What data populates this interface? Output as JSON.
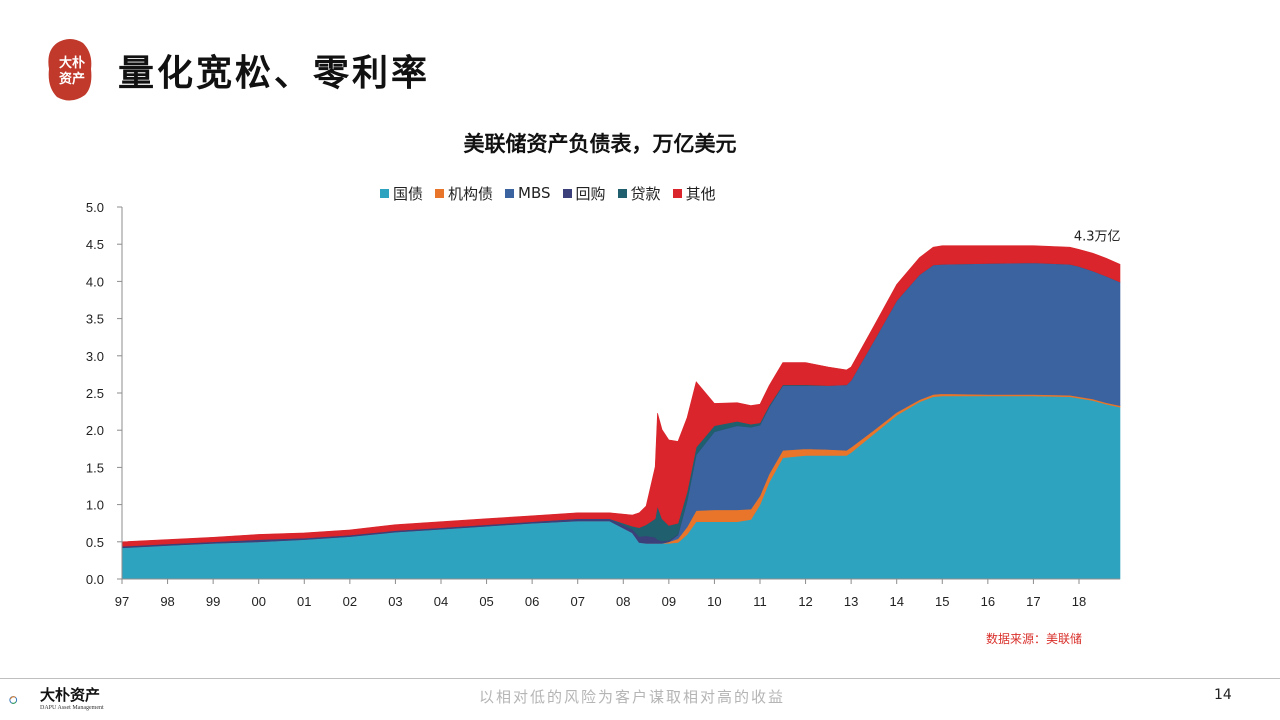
{
  "slide": {
    "title": "量化宽松、零利率",
    "logo_text": [
      "大",
      "朴",
      "资",
      "产"
    ],
    "source": "数据来源：美联储",
    "footer_brand": "大朴资产",
    "footer_brand_en": "DAPU Asset Management",
    "footer_slogan": "以相对低的风险为客户谋取相对高的收益",
    "page_number": "14",
    "brand_color": "#c0392b"
  },
  "chart_data": {
    "type": "area",
    "stacked": true,
    "title": "美联储资产负债表，万亿美元",
    "xlabel": "",
    "ylabel": "",
    "ylim": [
      0,
      5
    ],
    "yticks": [
      "0.0",
      "0.5",
      "1.0",
      "1.5",
      "2.0",
      "2.5",
      "3.0",
      "3.5",
      "4.0",
      "4.5",
      "5.0"
    ],
    "xlim": [
      1997,
      2018.9
    ],
    "xticks": [
      {
        "year": 1997,
        "label": "97"
      },
      {
        "year": 1998,
        "label": "98"
      },
      {
        "year": 1999,
        "label": "99"
      },
      {
        "year": 2000,
        "label": "00"
      },
      {
        "year": 2001,
        "label": "01"
      },
      {
        "year": 2002,
        "label": "02"
      },
      {
        "year": 2003,
        "label": "03"
      },
      {
        "year": 2004,
        "label": "04"
      },
      {
        "year": 2005,
        "label": "05"
      },
      {
        "year": 2006,
        "label": "06"
      },
      {
        "year": 2007,
        "label": "07"
      },
      {
        "year": 2008,
        "label": "08"
      },
      {
        "year": 2009,
        "label": "09"
      },
      {
        "year": 2010,
        "label": "10"
      },
      {
        "year": 2011,
        "label": "11"
      },
      {
        "year": 2012,
        "label": "12"
      },
      {
        "year": 2013,
        "label": "13"
      },
      {
        "year": 2014,
        "label": "14"
      },
      {
        "year": 2015,
        "label": "15"
      },
      {
        "year": 2016,
        "label": "16"
      },
      {
        "year": 2017,
        "label": "17"
      },
      {
        "year": 2018,
        "label": "18"
      }
    ],
    "legend_position": "top",
    "grid": false,
    "x": [
      1997.0,
      1998.0,
      1999.0,
      2000.0,
      2001.0,
      2002.0,
      2003.0,
      2004.0,
      2005.0,
      2006.0,
      2007.0,
      2007.7,
      2008.2,
      2008.35,
      2008.5,
      2008.7,
      2008.75,
      2008.85,
      2009.0,
      2009.2,
      2009.4,
      2009.6,
      2010.0,
      2010.5,
      2010.8,
      2011.0,
      2011.2,
      2011.5,
      2012.0,
      2012.5,
      2012.9,
      2013.0,
      2013.5,
      2014.0,
      2014.5,
      2014.8,
      2015.0,
      2016.0,
      2017.0,
      2017.8,
      2018.0,
      2018.3,
      2018.6,
      2018.9
    ],
    "series": [
      {
        "name": "国债",
        "color": "#2ea3bf",
        "values": [
          0.42,
          0.45,
          0.48,
          0.5,
          0.53,
          0.57,
          0.63,
          0.67,
          0.71,
          0.75,
          0.78,
          0.78,
          0.62,
          0.49,
          0.48,
          0.48,
          0.48,
          0.48,
          0.48,
          0.49,
          0.6,
          0.77,
          0.77,
          0.77,
          0.8,
          1.0,
          1.3,
          1.63,
          1.66,
          1.66,
          1.66,
          1.7,
          1.95,
          2.2,
          2.38,
          2.45,
          2.46,
          2.46,
          2.46,
          2.45,
          2.43,
          2.4,
          2.35,
          2.31
        ]
      },
      {
        "name": "机构债",
        "color": "#e8752a",
        "values": [
          0.0,
          0.0,
          0.0,
          0.0,
          0.0,
          0.0,
          0.0,
          0.0,
          0.0,
          0.0,
          0.0,
          0.0,
          0.0,
          0.0,
          0.0,
          0.0,
          0.0,
          0.0,
          0.02,
          0.05,
          0.1,
          0.15,
          0.16,
          0.16,
          0.14,
          0.12,
          0.11,
          0.1,
          0.09,
          0.08,
          0.07,
          0.07,
          0.05,
          0.04,
          0.03,
          0.03,
          0.03,
          0.02,
          0.02,
          0.02,
          0.02,
          0.02,
          0.02,
          0.02
        ]
      },
      {
        "name": "MBS",
        "color": "#3a63a0",
        "values": [
          0.0,
          0.0,
          0.0,
          0.0,
          0.0,
          0.0,
          0.0,
          0.0,
          0.0,
          0.0,
          0.0,
          0.0,
          0.0,
          0.0,
          0.0,
          0.0,
          0.0,
          0.0,
          0.0,
          0.05,
          0.35,
          0.75,
          1.05,
          1.13,
          1.1,
          0.95,
          0.9,
          0.87,
          0.85,
          0.86,
          0.88,
          0.9,
          1.2,
          1.5,
          1.68,
          1.74,
          1.74,
          1.76,
          1.77,
          1.76,
          1.75,
          1.72,
          1.7,
          1.66
        ]
      },
      {
        "name": "回购",
        "color": "#3b3f7a",
        "values": [
          0.02,
          0.02,
          0.02,
          0.03,
          0.02,
          0.02,
          0.02,
          0.02,
          0.02,
          0.02,
          0.03,
          0.03,
          0.05,
          0.08,
          0.1,
          0.08,
          0.05,
          0.03,
          0.02,
          0.01,
          0.0,
          0.0,
          0.0,
          0.0,
          0.0,
          0.0,
          0.0,
          0.0,
          0.0,
          0.0,
          0.0,
          0.0,
          0.0,
          0.0,
          0.0,
          0.0,
          0.0,
          0.0,
          0.0,
          0.0,
          0.0,
          0.0,
          0.0,
          0.0
        ]
      },
      {
        "name": "贷款",
        "color": "#1f5f6e",
        "values": [
          0.0,
          0.0,
          0.0,
          0.0,
          0.0,
          0.0,
          0.0,
          0.0,
          0.0,
          0.0,
          0.0,
          0.0,
          0.04,
          0.12,
          0.15,
          0.25,
          0.45,
          0.3,
          0.2,
          0.15,
          0.12,
          0.1,
          0.08,
          0.06,
          0.04,
          0.03,
          0.02,
          0.01,
          0.01,
          0.0,
          0.0,
          0.0,
          0.0,
          0.0,
          0.0,
          0.0,
          0.0,
          0.0,
          0.0,
          0.0,
          0.0,
          0.0,
          0.0,
          0.0
        ]
      },
      {
        "name": "其他",
        "color": "#d9252b",
        "values": [
          0.06,
          0.06,
          0.06,
          0.07,
          0.07,
          0.07,
          0.08,
          0.08,
          0.08,
          0.08,
          0.08,
          0.08,
          0.15,
          0.2,
          0.25,
          0.7,
          1.25,
          1.2,
          1.15,
          1.1,
          1.0,
          0.88,
          0.3,
          0.25,
          0.25,
          0.25,
          0.27,
          0.3,
          0.3,
          0.25,
          0.2,
          0.18,
          0.2,
          0.22,
          0.23,
          0.24,
          0.25,
          0.24,
          0.23,
          0.23,
          0.23,
          0.24,
          0.24,
          0.24
        ]
      }
    ],
    "annotations": [
      {
        "text": "4.3万亿",
        "x": 2018.4,
        "y": 4.55
      }
    ]
  }
}
